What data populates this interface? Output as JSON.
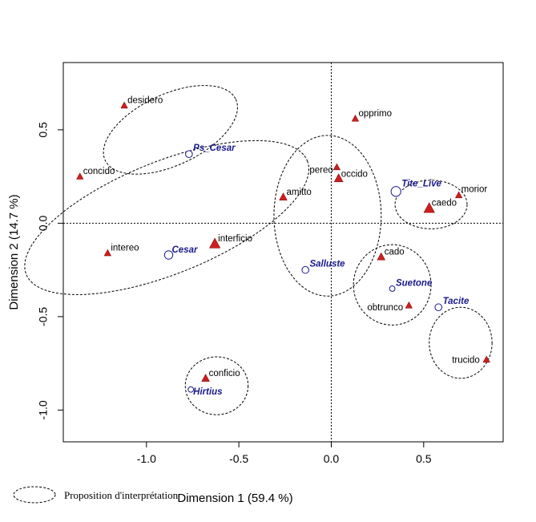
{
  "chart_data": {
    "type": "scatter",
    "xlabel": "Dimension 1 (59.4 %)",
    "ylabel": "Dimension 2 (14.7 %)",
    "xlim": [
      -1.45,
      0.93
    ],
    "ylim": [
      -1.17,
      0.86
    ],
    "x_ticks": [
      -1.0,
      -0.5,
      0.0,
      0.5
    ],
    "x_tick_labels": [
      "-1.0",
      "-0.5",
      "0.0",
      "0.5"
    ],
    "y_ticks": [
      -1.0,
      -0.5,
      0.0,
      0.5
    ],
    "y_tick_labels": [
      "-1.0",
      "-0.5",
      "0.0",
      "0.5"
    ],
    "reference_lines": {
      "x": 0,
      "y": 0,
      "style": "dotted"
    },
    "grid": false,
    "words": [
      {
        "label": "desidero",
        "x": -1.12,
        "y": 0.63,
        "weight": 1
      },
      {
        "label": "opprimo",
        "x": 0.13,
        "y": 0.56,
        "weight": 1
      },
      {
        "label": "concido",
        "x": -1.36,
        "y": 0.25,
        "weight": 1
      },
      {
        "label": "pereo",
        "x": 0.03,
        "y": 0.3,
        "weight": 1
      },
      {
        "label": "occido",
        "x": 0.04,
        "y": 0.24,
        "weight": 2
      },
      {
        "label": "amitto",
        "x": -0.26,
        "y": 0.14,
        "weight": 1.5
      },
      {
        "label": "morior",
        "x": 0.69,
        "y": 0.15,
        "weight": 1
      },
      {
        "label": "caedo",
        "x": 0.53,
        "y": 0.08,
        "weight": 3
      },
      {
        "label": "intereo",
        "x": -1.21,
        "y": -0.16,
        "weight": 1
      },
      {
        "label": "interficio",
        "x": -0.63,
        "y": -0.11,
        "weight": 3
      },
      {
        "label": "cado",
        "x": 0.27,
        "y": -0.18,
        "weight": 1.5
      },
      {
        "label": "obtrunco",
        "x": 0.42,
        "y": -0.44,
        "weight": 1
      },
      {
        "label": "trucido",
        "x": 0.84,
        "y": -0.73,
        "weight": 1
      },
      {
        "label": "conficio",
        "x": -0.68,
        "y": -0.83,
        "weight": 1.5
      }
    ],
    "authors": [
      {
        "label": "Ps_Cesar",
        "x": -0.77,
        "y": 0.37,
        "size": 1
      },
      {
        "label": "Tite_Live",
        "x": 0.35,
        "y": 0.17,
        "size": 2
      },
      {
        "label": "Cesar",
        "x": -0.88,
        "y": -0.17,
        "size": 1.5
      },
      {
        "label": "Salluste",
        "x": -0.14,
        "y": -0.25,
        "size": 1
      },
      {
        "label": "Suetone",
        "x": 0.33,
        "y": -0.35,
        "size": 0.5
      },
      {
        "label": "Tacite",
        "x": 0.58,
        "y": -0.45,
        "size": 1
      },
      {
        "label": "Hirtius",
        "x": -0.76,
        "y": -0.89,
        "size": 0.5
      }
    ],
    "groups": [
      {
        "cx": -0.87,
        "cy": 0.5,
        "rx": 0.39,
        "ry": 0.19,
        "angle": -25
      },
      {
        "cx": -0.89,
        "cy": 0.03,
        "rx": 0.82,
        "ry": 0.3,
        "angle": -22
      },
      {
        "cx": -0.02,
        "cy": 0.04,
        "rx": 0.29,
        "ry": 0.43,
        "angle": 0
      },
      {
        "cx": 0.54,
        "cy": 0.1,
        "rx": 0.195,
        "ry": 0.13,
        "angle": 0
      },
      {
        "cx": 0.33,
        "cy": -0.33,
        "rx": 0.21,
        "ry": 0.215,
        "angle": 0
      },
      {
        "cx": 0.7,
        "cy": -0.64,
        "rx": 0.17,
        "ry": 0.19,
        "angle": 0
      },
      {
        "cx": -0.62,
        "cy": -0.87,
        "rx": 0.17,
        "ry": 0.155,
        "angle": 0
      }
    ],
    "legend": {
      "label": "Proposition d'interprétation",
      "position": "bottom-left"
    }
  }
}
